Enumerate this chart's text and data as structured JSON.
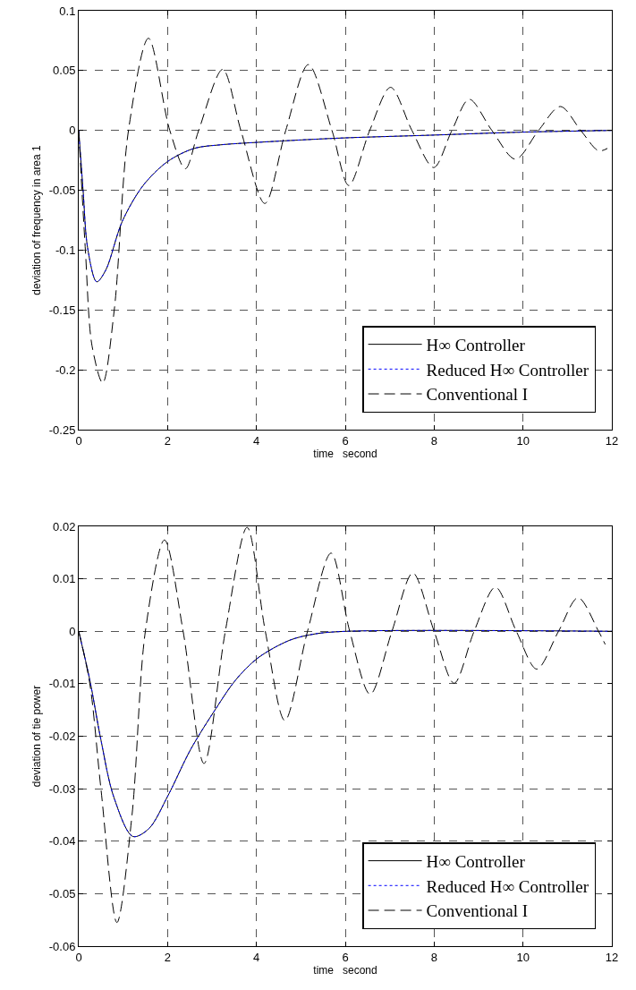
{
  "chart_data": [
    {
      "type": "line",
      "xlabel": "time   second",
      "ylabel": "deviation of frequency in area 1",
      "xlim": [
        0,
        12
      ],
      "xticks": [
        0,
        2,
        4,
        6,
        8,
        10,
        12
      ],
      "ylim": [
        -0.25,
        0.1
      ],
      "yticks": [
        -0.25,
        -0.2,
        -0.15,
        -0.1,
        -0.05,
        0,
        0.05,
        0.1
      ],
      "grid": true,
      "legend": "bottom right",
      "series": [
        {
          "name": "H∞ Controller",
          "color": "#000000",
          "line_style": "solid",
          "x": [
            0,
            0.1,
            0.2,
            0.405,
            0.61,
            0.98,
            1.45,
            2.0,
            2.6,
            3.2,
            4.0,
            5.88,
            7.9,
            9.9,
            12
          ],
          "values": [
            0,
            -0.051,
            -0.098,
            -0.1265,
            -0.1166,
            -0.076,
            -0.046,
            -0.026,
            -0.015,
            -0.012,
            -0.01,
            -0.0064,
            -0.004,
            -0.0015,
            0
          ]
        },
        {
          "name": "Reduced H∞ Controller",
          "color": "#0000ff",
          "line_style": "dotted",
          "x": [
            0,
            0.1,
            0.2,
            0.405,
            0.61,
            0.98,
            1.45,
            2.0,
            2.6,
            3.2,
            4.0,
            5.88,
            7.9,
            9.9,
            12
          ],
          "values": [
            0,
            -0.051,
            -0.098,
            -0.1265,
            -0.1166,
            -0.076,
            -0.046,
            -0.026,
            -0.015,
            -0.012,
            -0.01,
            -0.0064,
            -0.004,
            -0.0015,
            0
          ]
        },
        {
          "name": "Conventional I",
          "color": "#000000",
          "line_style": "dashed",
          "x": [
            0,
            0.15,
            0.3,
            0.54,
            0.8,
            1.12,
            1.57,
            2.05,
            2.4,
            2.7,
            3.24,
            3.65,
            4.19,
            4.66,
            5.17,
            5.7,
            6.08,
            6.55,
            7.02,
            7.5,
            7.99,
            8.4,
            8.79,
            9.3,
            9.83,
            10.35,
            10.84,
            11.3,
            11.7,
            11.9
          ],
          "values": [
            0,
            -0.1,
            -0.18,
            -0.211,
            -0.15,
            0,
            0.077,
            0,
            -0.032,
            0,
            0.051,
            0,
            -0.061,
            0,
            0.055,
            0,
            -0.046,
            0,
            0.036,
            0,
            -0.031,
            0,
            0.026,
            0,
            -0.024,
            0,
            0.02,
            0,
            -0.017,
            -0.015
          ]
        }
      ]
    },
    {
      "type": "line",
      "xlabel": "time   second",
      "ylabel": "deviation of tie power",
      "xlim": [
        0,
        12
      ],
      "xticks": [
        0,
        2,
        4,
        6,
        8,
        10,
        12
      ],
      "ylim": [
        -0.06,
        0.02
      ],
      "yticks": [
        -0.06,
        -0.05,
        -0.04,
        -0.03,
        -0.02,
        -0.01,
        0,
        0.01,
        0.02
      ],
      "grid": true,
      "legend": "bottom right",
      "series": [
        {
          "name": "H∞ Controller",
          "color": "#000000",
          "line_style": "solid",
          "x": [
            0,
            0.25,
            0.5,
            0.79,
            1.22,
            1.58,
            2.01,
            2.52,
            3.09,
            3.53,
            4.03,
            4.75,
            5.32,
            6.04,
            12
          ],
          "values": [
            0,
            -0.0093,
            -0.0207,
            -0.0316,
            -0.0391,
            -0.0376,
            -0.0313,
            -0.0225,
            -0.0147,
            -0.0093,
            -0.0051,
            -0.0017,
            -0.0005,
            0,
            0
          ]
        },
        {
          "name": "Reduced H∞ Controller",
          "color": "#0000ff",
          "line_style": "dotted",
          "x": [
            0,
            0.25,
            0.5,
            0.79,
            1.22,
            1.58,
            2.01,
            2.52,
            3.09,
            3.53,
            4.03,
            4.75,
            5.32,
            6.04,
            12
          ],
          "values": [
            0,
            -0.0093,
            -0.0207,
            -0.0316,
            -0.0391,
            -0.0376,
            -0.0313,
            -0.0225,
            -0.0147,
            -0.0093,
            -0.0051,
            -0.0017,
            -0.0005,
            0,
            0
          ]
        },
        {
          "name": "Conventional I",
          "color": "#000000",
          "line_style": "dashed",
          "x": [
            0,
            0.25,
            0.5,
            0.86,
            1.2,
            1.5,
            1.93,
            2.35,
            2.82,
            3.3,
            3.79,
            4.2,
            4.64,
            5.15,
            5.68,
            6.1,
            6.56,
            7.05,
            7.52,
            8.0,
            8.45,
            8.9,
            9.38,
            9.85,
            10.31,
            10.8,
            11.24,
            11.7,
            11.85
          ],
          "values": [
            0,
            -0.01,
            -0.03,
            -0.0555,
            -0.035,
            0,
            0.0174,
            0,
            -0.0252,
            0,
            0.0198,
            0,
            -0.017,
            0,
            0.0149,
            0,
            -0.012,
            0,
            0.0111,
            0,
            -0.0099,
            0,
            0.0084,
            0,
            -0.0072,
            0,
            0.0064,
            0,
            -0.0025
          ]
        }
      ]
    }
  ]
}
